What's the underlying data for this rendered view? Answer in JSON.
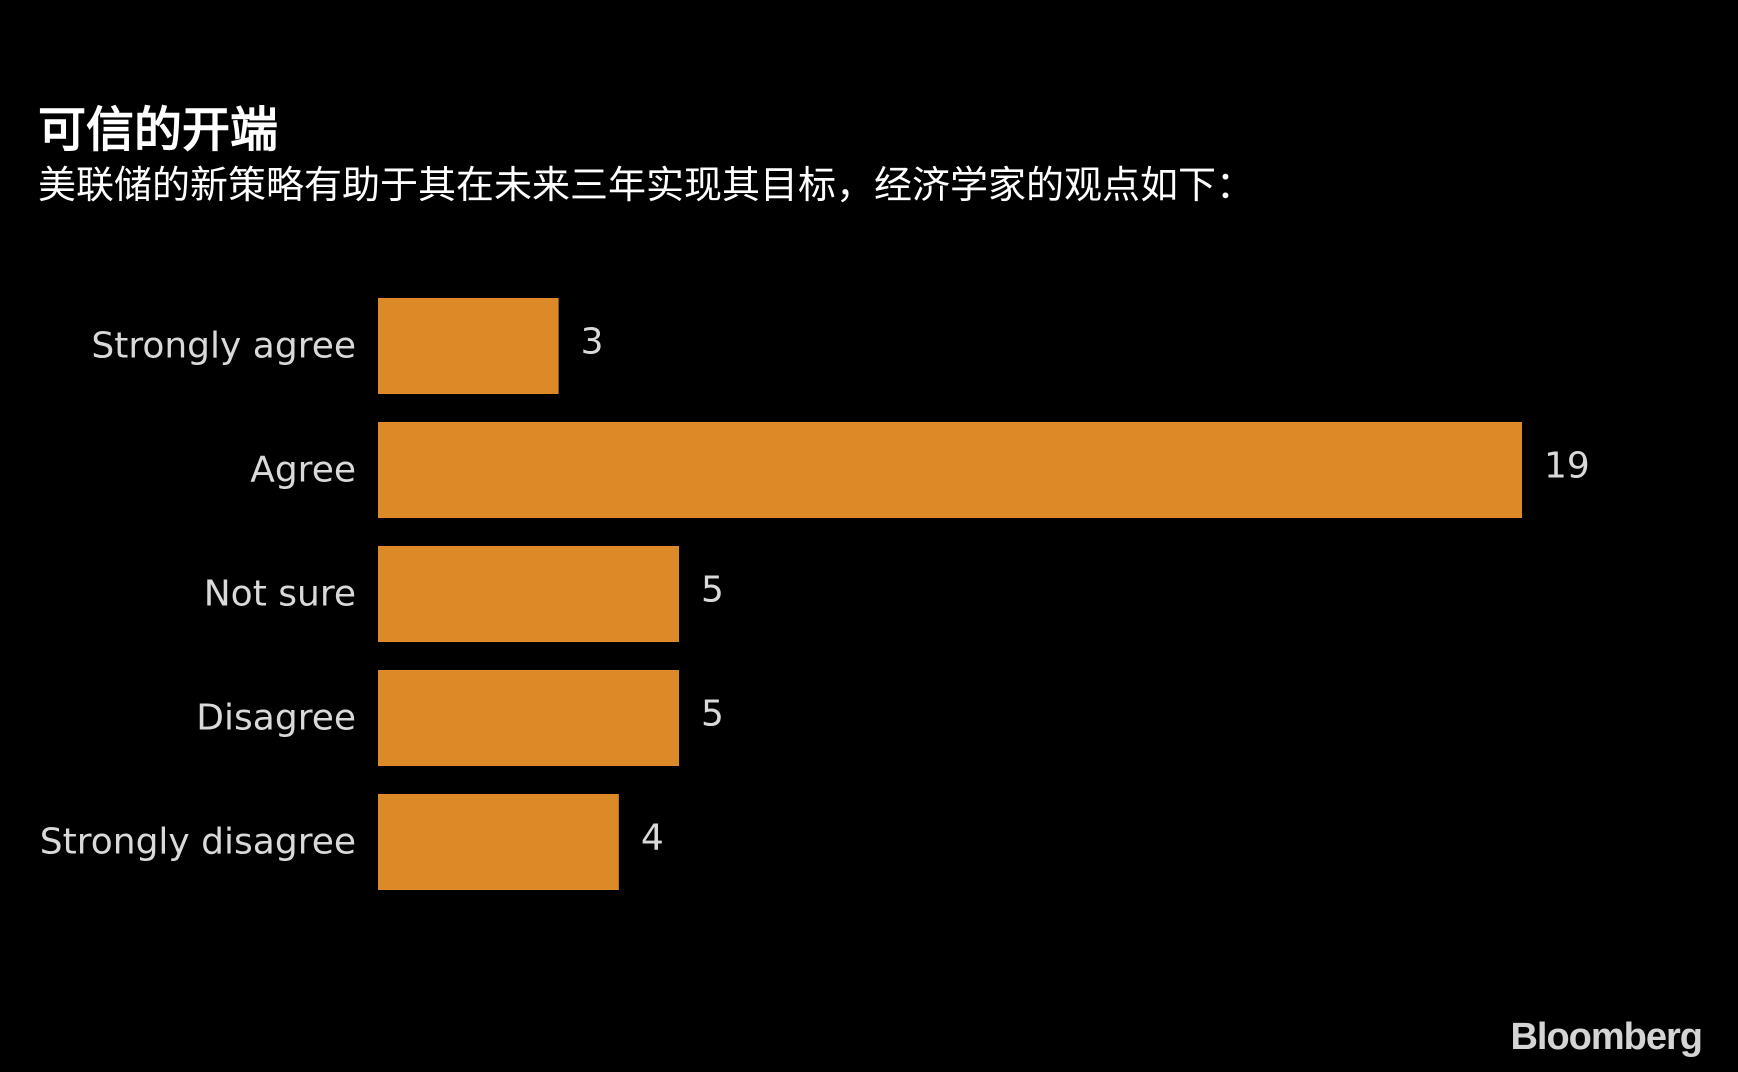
{
  "chart_data": {
    "type": "bar",
    "orientation": "horizontal",
    "title": "可信的开端",
    "subtitle": "美联储的新策略有助于其在未来三年实现其目标，经济学家的观点如下：",
    "categories": [
      "Strongly agree",
      "Agree",
      "Not sure",
      "Disagree",
      "Strongly disagree"
    ],
    "values": [
      3,
      19,
      5,
      5,
      4
    ],
    "data_labels": [
      "3",
      "19",
      "5",
      "5",
      "4"
    ],
    "xlim": [
      0,
      19
    ],
    "bar_color": "#dc8a28",
    "grid": false,
    "legend": "none"
  },
  "footer": {
    "logo": "Bloomberg"
  },
  "colors": {
    "background": "#000000",
    "text": "#ffffff",
    "label": "#d9d9d9"
  }
}
